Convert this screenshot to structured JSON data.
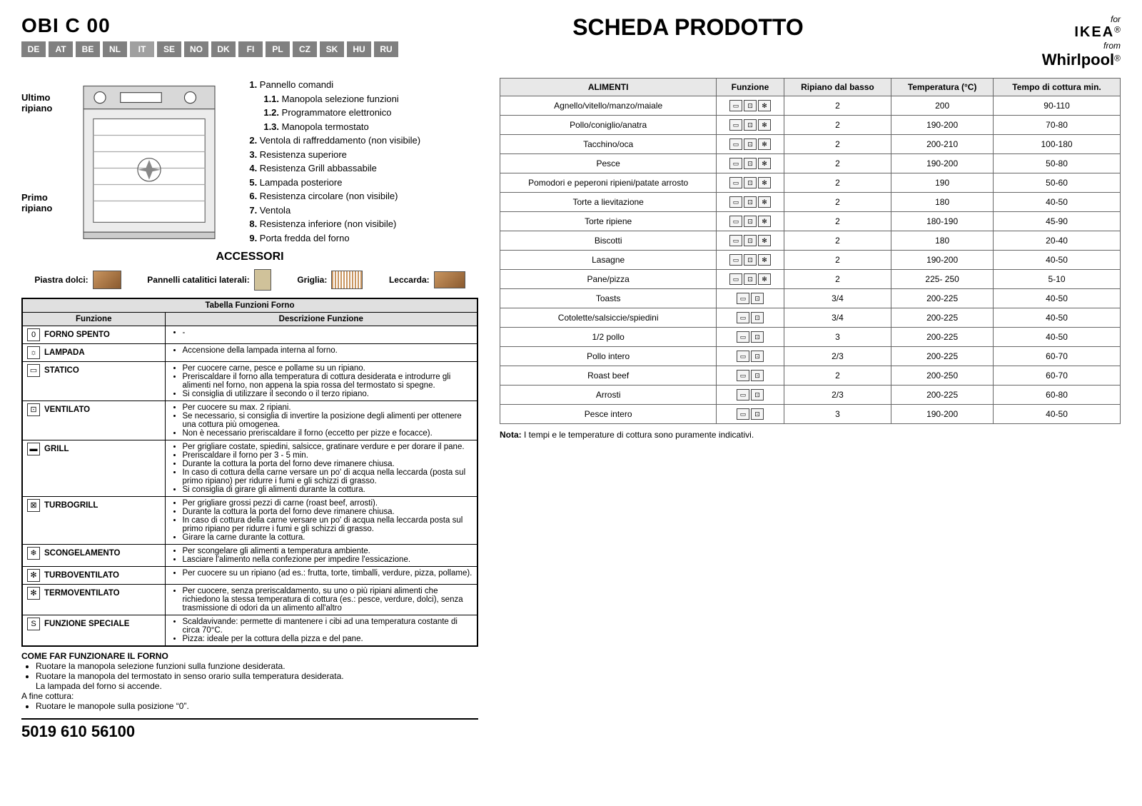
{
  "header": {
    "model_code": "OBI C 00",
    "title": "SCHEDA PRODOTTO",
    "langs": [
      "DE",
      "AT",
      "BE",
      "NL",
      "IT",
      "SE",
      "NO",
      "DK",
      "FI",
      "PL",
      "CZ",
      "SK",
      "HU",
      "RU"
    ],
    "active_lang_index": 4,
    "brand": {
      "for": "for",
      "ikea": "IKEA",
      "reg": "®",
      "from": "from",
      "whirlpool": "Whirlpool",
      "wp_reg": "®"
    }
  },
  "diagram": {
    "ultimo": "Ultimo\nripiano",
    "primo": "Primo\nripiano"
  },
  "parts": {
    "items": [
      {
        "n": "1.",
        "t": "Pannello comandi"
      },
      {
        "n": "1.1.",
        "t": "Manopola selezione funzioni",
        "sub": true
      },
      {
        "n": "1.2.",
        "t": "Programmatore elettronico",
        "sub": true
      },
      {
        "n": "1.3.",
        "t": "Manopola termostato",
        "sub": true
      },
      {
        "n": "2.",
        "t": "Ventola di raffreddamento (non visibile)"
      },
      {
        "n": "3.",
        "t": "Resistenza superiore"
      },
      {
        "n": "4.",
        "t": "Resistenza Grill abbassabile"
      },
      {
        "n": "5.",
        "t": "Lampada posteriore"
      },
      {
        "n": "6.",
        "t": "Resistenza circolare (non visibile)"
      },
      {
        "n": "7.",
        "t": "Ventola"
      },
      {
        "n": "8.",
        "t": "Resistenza inferiore (non visibile)"
      },
      {
        "n": "9.",
        "t": "Porta fredda del forno"
      }
    ],
    "accessori_title": "ACCESSORI",
    "accessori": [
      {
        "label": "Piastra dolci:"
      },
      {
        "label": "Pannelli catalitici laterali:"
      },
      {
        "label": "Griglia:"
      },
      {
        "label": "Leccarda:"
      }
    ]
  },
  "func_table": {
    "title": "Tabella Funzioni Forno",
    "col1": "Funzione",
    "col2": "Descrizione Funzione",
    "rows": [
      {
        "icon": "0",
        "name": "FORNO SPENTO",
        "desc": [
          "-"
        ]
      },
      {
        "icon": "☼",
        "name": "LAMPADA",
        "desc": [
          "Accensione della lampada interna al forno."
        ]
      },
      {
        "icon": "▭",
        "name": "STATICO",
        "desc": [
          "Per cuocere carne, pesce e pollame su un ripiano.",
          "Preriscaldare il forno alla temperatura di cottura desiderata e introdurre gli alimenti nel forno, non appena la spia rossa del termostato si spegne.",
          "Si consiglia di utilizzare il secondo o il terzo ripiano."
        ]
      },
      {
        "icon": "⊡",
        "name": "VENTILATO",
        "desc": [
          "Per cuocere su max. 2 ripiani.",
          "Se necessario, si consiglia di invertire la posizione degli alimenti per ottenere una cottura più omogenea.",
          "Non è necessario preriscaldare il forno (eccetto per pizze e focacce)."
        ]
      },
      {
        "icon": "▬",
        "name": "GRILL",
        "desc": [
          "Per grigliare costate, spiedini, salsicce, gratinare verdure e per dorare il pane.",
          "Preriscaldare il forno per 3 - 5 min.",
          "Durante la cottura la porta del forno deve rimanere chiusa.",
          "In caso di cottura della carne versare un po' di acqua nella leccarda (posta sul primo ripiano) per ridurre i fumi e gli schizzi di grasso.",
          "Si consiglia di girare gli alimenti durante la cottura."
        ]
      },
      {
        "icon": "⊠",
        "name": "TURBOGRILL",
        "desc": [
          "Per grigliare grossi pezzi di carne (roast beef, arrosti).",
          "Durante la cottura la porta del forno deve rimanere chiusa.",
          "In caso di cottura della carne versare un po' di acqua nella leccarda posta sul primo ripiano per ridurre i fumi e gli schizzi di grasso.",
          "Girare la carne durante la cottura."
        ]
      },
      {
        "icon": "❄",
        "name": "SCONGELAMENTO",
        "desc": [
          "Per scongelare gli alimenti a temperatura ambiente.",
          "Lasciare l'alimento nella confezione per impedire l'essicazione."
        ]
      },
      {
        "icon": "✻",
        "name": "TURBOVENTILATO",
        "desc": [
          "Per cuocere su un ripiano (ad es.: frutta, torte, timballi, verdure, pizza, pollame)."
        ]
      },
      {
        "icon": "✻",
        "name": "TERMOVENTILATO",
        "desc": [
          "Per cuocere, senza preriscaldamento, su uno o più ripiani alimenti che richiedono la stessa temperatura di cottura (es.: pesce, verdure, dolci), senza trasmissione di odori da un alimento all'altro"
        ]
      },
      {
        "icon": "S",
        "name": "FUNZIONE SPECIALE",
        "desc": [
          "Scaldavivande: permette di mantenere i cibi ad una temperatura costante di circa 70°C.",
          "Pizza: ideale per la cottura della pizza e del pane."
        ]
      }
    ]
  },
  "howto": {
    "title": "COME FAR FUNZIONARE IL FORNO",
    "lines": [
      "Ruotare la manopola selezione funzioni sulla funzione desiderata.",
      "La lampada del forno si accende.",
      "Ruotare la manopola del termostato in senso orario sulla temperatura desiderata."
    ],
    "after": "A fine cottura:",
    "after_lines": [
      "Ruotare le manopole sulla posizione “0”."
    ]
  },
  "cook_table": {
    "headers": [
      "ALIMENTI",
      "Funzione",
      "Ripiano dal basso",
      "Temperatura (°C)",
      "Tempo di cottura min."
    ],
    "icon_sets": {
      "three": 3,
      "two": 2
    },
    "rows": [
      {
        "food": "Agnello/vitello/manzo/maiale",
        "icons": 3,
        "shelf": "2",
        "temp": "200",
        "time": "90-110"
      },
      {
        "food": "Pollo/coniglio/anatra",
        "icons": 3,
        "shelf": "2",
        "temp": "190-200",
        "time": "70-80"
      },
      {
        "food": "Tacchino/oca",
        "icons": 3,
        "shelf": "2",
        "temp": "200-210",
        "time": "100-180"
      },
      {
        "food": "Pesce",
        "icons": 3,
        "shelf": "2",
        "temp": "190-200",
        "time": "50-80"
      },
      {
        "food": "Pomodori e peperoni ripieni/patate arrosto",
        "icons": 3,
        "shelf": "2",
        "temp": "190",
        "time": "50-60"
      },
      {
        "food": "Torte a lievitazione",
        "icons": 3,
        "shelf": "2",
        "temp": "180",
        "time": "40-50"
      },
      {
        "food": "Torte ripiene",
        "icons": 3,
        "shelf": "2",
        "temp": "180-190",
        "time": "45-90"
      },
      {
        "food": "Biscotti",
        "icons": 3,
        "shelf": "2",
        "temp": "180",
        "time": "20-40"
      },
      {
        "food": "Lasagne",
        "icons": 3,
        "shelf": "2",
        "temp": "190-200",
        "time": "40-50"
      },
      {
        "food": "Pane/pizza",
        "icons": 3,
        "shelf": "2",
        "temp": "225- 250",
        "time": "5-10"
      },
      {
        "food": "Toasts",
        "icons": 2,
        "shelf": "3/4",
        "temp": "200-225",
        "time": "40-50"
      },
      {
        "food": "Cotolette/salsiccie/spiedini",
        "icons": 2,
        "shelf": "3/4",
        "temp": "200-225",
        "time": "40-50"
      },
      {
        "food": "1/2 pollo",
        "icons": 2,
        "shelf": "3",
        "temp": "200-225",
        "time": "40-50"
      },
      {
        "food": "Pollo intero",
        "icons": 2,
        "shelf": "2/3",
        "temp": "200-225",
        "time": "60-70"
      },
      {
        "food": "Roast beef",
        "icons": 2,
        "shelf": "2",
        "temp": "200-250",
        "time": "60-70"
      },
      {
        "food": "Arrosti",
        "icons": 2,
        "shelf": "2/3",
        "temp": "200-225",
        "time": "60-80"
      },
      {
        "food": "Pesce intero",
        "icons": 2,
        "shelf": "3",
        "temp": "190-200",
        "time": "40-50"
      }
    ],
    "note_label": "Nota:",
    "note_text": "I tempi e le temperature di cottura sono puramente indicativi."
  },
  "footer": {
    "code": "5019 610 56100"
  },
  "colors": {
    "flag_bg": "#808080",
    "flag_active": "#a0a0a0",
    "th_bg": "#e8e8e8",
    "th_bg2": "#e0e0e0",
    "border": "#000000"
  }
}
